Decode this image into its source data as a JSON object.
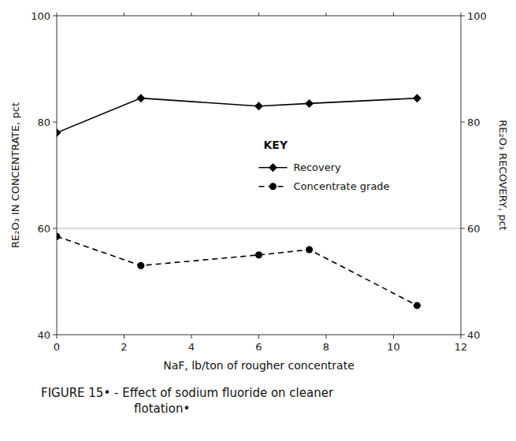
{
  "chart_data": {
    "type": "line",
    "xlabel": "NaF, lb/ton of rougher concentrate",
    "ylabel": "RE₂O₃ IN CONCENTRATE, pct",
    "y2label": "RE₂O₃ RECOVERY, pct",
    "caption": [
      "FIGURE 15• -  Effect of sodium fluoride on cleaner",
      "flotation•"
    ],
    "xlim": [
      0,
      12
    ],
    "xticks": [
      0,
      2,
      4,
      6,
      8,
      10,
      12
    ],
    "ylim": [
      40,
      100
    ],
    "yticks": [
      40,
      60,
      80,
      100
    ],
    "y2lim": [
      40,
      100
    ],
    "y2ticks": [
      40,
      60,
      80,
      100
    ],
    "reference_line": 60,
    "grid": false,
    "legend": "center",
    "legend_title": "KEY",
    "background": "#ffffff",
    "series": [
      {
        "name": "Recovery",
        "color": "#000000",
        "marker": "diamond",
        "line_style": "solid",
        "x": [
          0,
          2.5,
          6.0,
          7.5,
          10.7
        ],
        "values": [
          78,
          84.5,
          83,
          83.5,
          84.5
        ]
      },
      {
        "name": "Concentrate grade",
        "color": "#000000",
        "marker": "circle",
        "line_style": "dashed",
        "x": [
          0,
          2.5,
          6.0,
          7.5,
          10.7
        ],
        "values": [
          58.5,
          53,
          55,
          56,
          45.5
        ]
      }
    ]
  }
}
